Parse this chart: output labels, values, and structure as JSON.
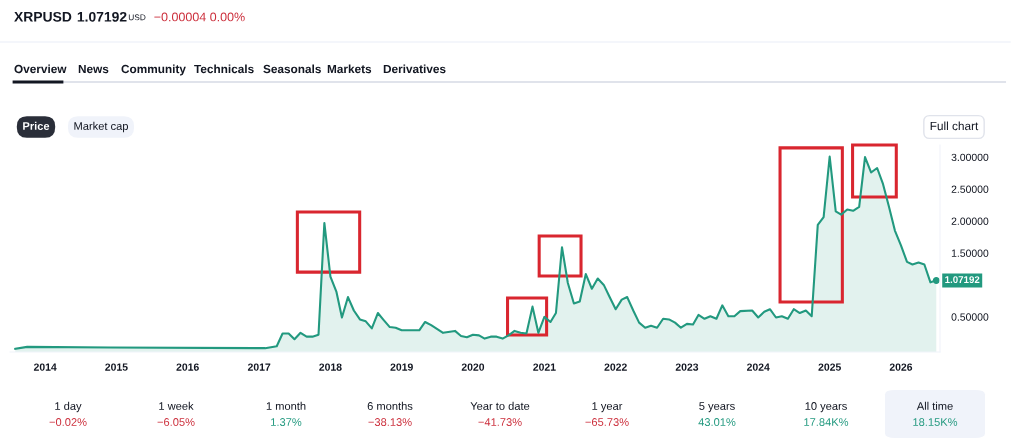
{
  "chart_data": {
    "type": "area",
    "title": "XRPUSD",
    "x": [
      "2013-08",
      "2013-10",
      "2014-12",
      "2017-02",
      "2017-04",
      "2017-05",
      "2017-06",
      "2017-07",
      "2017-08",
      "2017-09",
      "2017-10",
      "2017-11",
      "2017-12",
      "2018-01",
      "2018-02",
      "2018-03",
      "2018-04",
      "2018-05",
      "2018-06",
      "2018-07",
      "2018-08",
      "2018-09",
      "2018-10",
      "2018-11",
      "2018-12",
      "2019-01",
      "2019-04",
      "2019-05",
      "2019-06",
      "2019-08",
      "2019-10",
      "2019-11",
      "2019-12",
      "2020-01",
      "2020-02",
      "2020-03",
      "2020-04",
      "2020-05",
      "2020-06",
      "2020-07",
      "2020-08",
      "2020-09",
      "2020-10",
      "2020-11",
      "2020-12",
      "2021-01",
      "2021-02",
      "2021-03",
      "2021-04",
      "2021-05",
      "2021-06",
      "2021-07",
      "2021-08",
      "2021-09",
      "2021-10",
      "2021-11",
      "2021-12",
      "2022-01",
      "2022-02",
      "2022-03",
      "2022-04",
      "2022-05",
      "2022-06",
      "2022-07",
      "2022-08",
      "2022-09",
      "2022-10",
      "2022-11",
      "2022-12",
      "2023-01",
      "2023-02",
      "2023-03",
      "2023-04",
      "2023-05",
      "2023-06",
      "2023-07",
      "2023-08",
      "2023-09",
      "2023-10",
      "2023-12",
      "2024-01",
      "2024-02",
      "2024-03",
      "2024-04",
      "2024-05",
      "2024-06",
      "2024-07",
      "2024-08",
      "2024-09",
      "2024-10",
      "2024-11",
      "2024-12",
      "2025-01",
      "2025-02",
      "2025-03",
      "2025-04",
      "2025-05",
      "2025-06",
      "2025-07",
      "2025-08",
      "2025-09",
      "2025-10",
      "2025-11",
      "2025-12",
      "2026-01",
      "2026-02",
      "2026-03",
      "2026-04",
      "2026-05",
      "2026-06",
      "2026-07"
    ],
    "series": [
      {
        "color": "#22997f",
        "values": [
          0.0,
          0.03,
          0.02,
          0.01,
          0.04,
          0.24,
          0.24,
          0.15,
          0.25,
          0.19,
          0.19,
          0.22,
          1.97,
          1.13,
          0.89,
          0.49,
          0.81,
          0.6,
          0.46,
          0.43,
          0.32,
          0.56,
          0.45,
          0.34,
          0.33,
          0.29,
          0.29,
          0.42,
          0.37,
          0.25,
          0.28,
          0.2,
          0.18,
          0.22,
          0.21,
          0.16,
          0.19,
          0.19,
          0.16,
          0.21,
          0.28,
          0.25,
          0.24,
          0.66,
          0.25,
          0.5,
          0.42,
          0.56,
          1.59,
          1.03,
          0.71,
          0.74,
          1.17,
          0.94,
          1.1,
          1.0,
          0.81,
          0.62,
          0.77,
          0.81,
          0.6,
          0.41,
          0.33,
          0.36,
          0.33,
          0.47,
          0.46,
          0.41,
          0.33,
          0.39,
          0.38,
          0.53,
          0.47,
          0.51,
          0.47,
          0.68,
          0.51,
          0.51,
          0.59,
          0.6,
          0.49,
          0.58,
          0.62,
          0.49,
          0.51,
          0.47,
          0.62,
          0.56,
          0.6,
          0.51,
          1.94,
          2.06,
          3.01,
          2.15,
          2.1,
          2.18,
          2.16,
          2.22,
          3.0,
          2.76,
          2.83,
          2.58,
          2.22,
          1.85,
          1.62,
          1.36,
          1.32,
          1.35,
          1.32,
          1.04,
          1.07
        ]
      }
    ],
    "xlim": [
      "2013-07-05",
      "2026-07-20"
    ],
    "xticks": [
      {
        "value": "2014-01-01",
        "label": "2014"
      },
      {
        "value": "2015-01-01",
        "label": "2015"
      },
      {
        "value": "2016-01-01",
        "label": "2016"
      },
      {
        "value": "2017-01-01",
        "label": "2017"
      },
      {
        "value": "2018-01-01",
        "label": "2018"
      },
      {
        "value": "2019-01-01",
        "label": "2019"
      },
      {
        "value": "2020-01-01",
        "label": "2020"
      },
      {
        "value": "2021-01-01",
        "label": "2021"
      },
      {
        "value": "2022-01-01",
        "label": "2022"
      },
      {
        "value": "2023-01-01",
        "label": "2023"
      },
      {
        "value": "2024-01-01",
        "label": "2024"
      },
      {
        "value": "2025-01-01",
        "label": "2025"
      },
      {
        "value": "2026-01-01",
        "label": "2026"
      }
    ],
    "ylim": [
      -0.05,
      3.19
    ],
    "yticks": [
      {
        "value": 0.5,
        "label": "0.50000"
      },
      {
        "value": 1.5,
        "label": "1.50000"
      },
      {
        "value": 2.0,
        "label": "2.00000"
      },
      {
        "value": 2.5,
        "label": "2.50000"
      },
      {
        "value": 3.0,
        "label": "3.00000"
      }
    ],
    "grid": false,
    "legend": false,
    "annotations": [
      "1.07192",
      "USD",
      "−0.00004 0.00%",
      "Overview",
      "News",
      "Community",
      "Technicals",
      "Seasonals",
      "Markets",
      "Derivatives",
      "Price",
      "Market cap",
      "Full chart",
      "1 day",
      "−0.02%",
      "1 week",
      "−6.05%",
      "1 month",
      "1.37%",
      "6 months",
      "−38.13%",
      "Year to date",
      "−41.73%",
      "1 year",
      "−65.73%",
      "5 years",
      "43.01%",
      "10 years",
      "17.84K%",
      "All time",
      "18.15K%",
      {
        "text": "1.07192",
        "x": "2026-07",
        "y": 1.07
      }
    ]
  }
}
